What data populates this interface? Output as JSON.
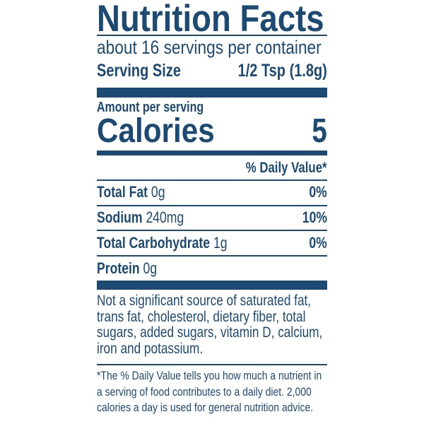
{
  "title": "Nutrition Facts",
  "servings_per_container": "about 16 servings per container",
  "serving_size": {
    "label": "Serving Size",
    "value": "1/2 Tsp (1.8g)"
  },
  "amount_per_serving": "Amount per serving",
  "calories": {
    "label": "Calories",
    "value": "5"
  },
  "daily_value_header": "% Daily Value*",
  "nutrients": [
    {
      "name": "Total Fat",
      "amount": "0g",
      "dv": "0%"
    },
    {
      "name": "Sodium",
      "amount": "240mg",
      "dv": "10%"
    },
    {
      "name": "Total Carbohydrate",
      "amount": "1g",
      "dv": "0%"
    },
    {
      "name": "Protein",
      "amount": "0g",
      "dv": ""
    }
  ],
  "not_significant": "Not a significant source of saturated fat, trans fat, cholesterol, dietary fiber, total sugars, added sugars, vitamin D, calcium, iron and potassium.",
  "footnote": "*The % Daily Value tells you how much a nutrient in a serving of food contributes to a daily diet. 2,000 calories a day is used for general nutrition advice.",
  "colors": {
    "ink": "#1d4a72",
    "background": "#ffffff"
  }
}
